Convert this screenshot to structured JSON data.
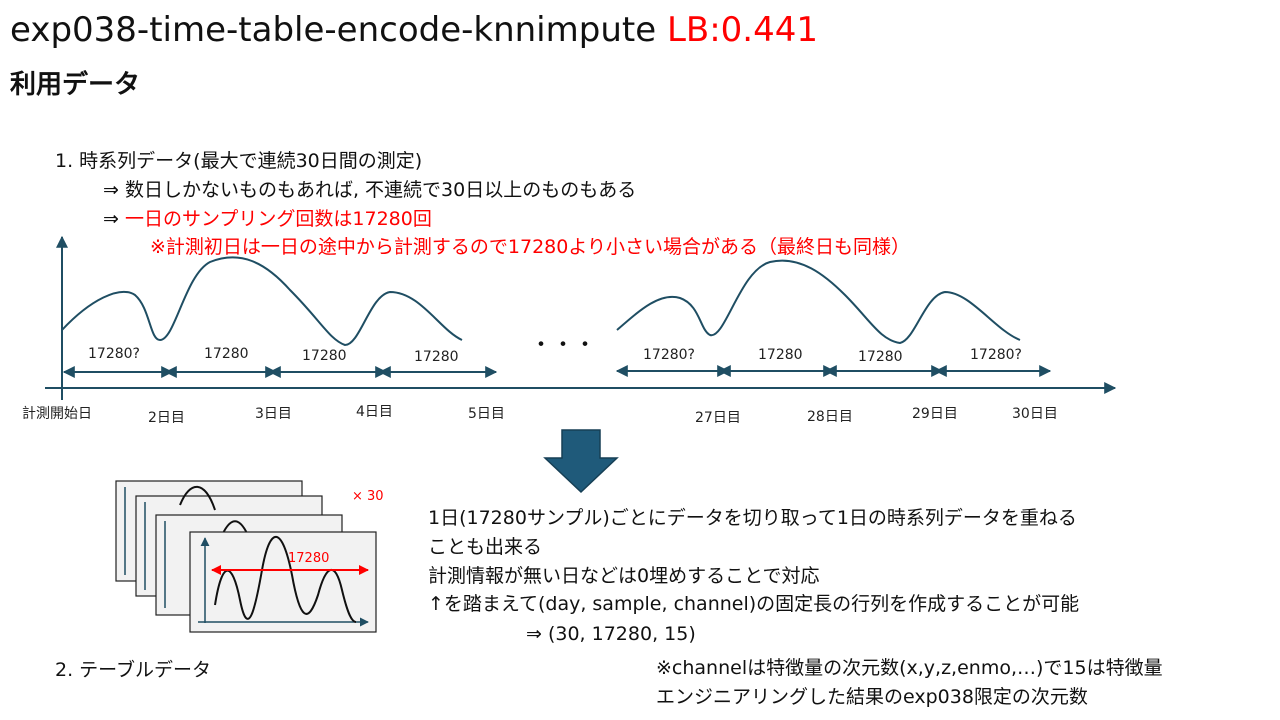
{
  "header": {
    "title_main": "exp038-time-table-encode-knnimpute",
    "title_lb": "LB:0.441",
    "subtitle": "利用データ"
  },
  "section1": {
    "line1": "1.  時系列データ(最大で連続30日間の測定)",
    "line2": "⇒ 数日しかないものもあれば,  不連続で30日以上のものもある",
    "line3_prefix": "⇒ ",
    "line3_red": "一日のサンプリング回数は17280回",
    "line4": "※計測初日は一日の途中から計測するので17280より小さい場合がある（最終日も同様）"
  },
  "timeline": {
    "segment_labels": [
      "17280?",
      "17280",
      "17280",
      "17280",
      "17280?",
      "17280",
      "17280",
      "17280?"
    ],
    "day_labels": [
      "計測開始日",
      "2日目",
      "3日目",
      "4日目",
      "5日目",
      "27日目",
      "28日目",
      "29日目",
      "30日目"
    ],
    "ellipsis": "・・・"
  },
  "stack": {
    "multiplier": "× 30",
    "length_label": "17280"
  },
  "description": {
    "p1_line1": "1日(17280サンプル)ごとにデータを切り取って1日の時系列データを重ねる",
    "p1_line2": "ことも出来る",
    "p2": "計測情報が無い日などは0埋めすることで対応",
    "p3": "↑を踏まえて(day, sample, channel)の固定長の行列を作成することが可能",
    "p4": "⇒ (30, 17280, 15)"
  },
  "section2": {
    "label": "2. テーブルデータ"
  },
  "note": {
    "line1": "※channelは特徴量の次元数(x,y,z,enmo,…)で15は特徴量",
    "line2": "エンジニアリングした結果のexp038限定の次元数"
  },
  "colors": {
    "accent": "#ff0000",
    "axis": "#1f4e63",
    "arrow_fill": "#1f5a7a"
  }
}
